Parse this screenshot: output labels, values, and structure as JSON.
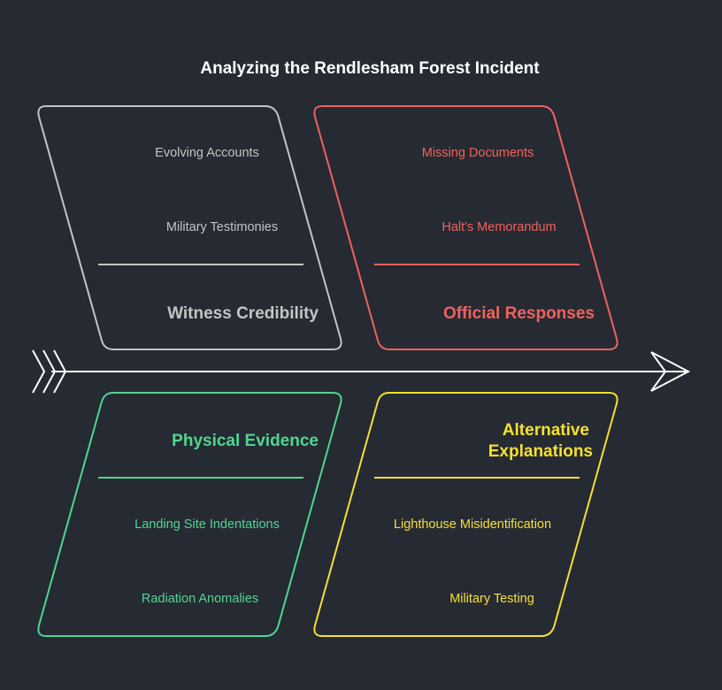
{
  "title": "Analyzing the Rendlesham Forest Incident",
  "colors": {
    "background": "#262a33",
    "title": "#ffffff",
    "spine": "#ffffff"
  },
  "categories": [
    {
      "label": [
        "Witness Credibility"
      ],
      "color": "#c4c4c4",
      "items": [
        "Evolving Accounts",
        "Military Testimonies"
      ]
    },
    {
      "label": [
        "Official Responses"
      ],
      "color": "#f0625c",
      "items": [
        "Missing Documents",
        "Halt's Memorandum"
      ]
    },
    {
      "label": [
        "Physical Evidence"
      ],
      "color": "#4fd68f",
      "items": [
        "Landing Site Indentations",
        "Radiation Anomalies"
      ]
    },
    {
      "label": [
        "Alternative",
        "Explanations"
      ],
      "color": "#f5e030",
      "items": [
        "Lighthouse Misidentification",
        "Military Testing"
      ]
    }
  ]
}
